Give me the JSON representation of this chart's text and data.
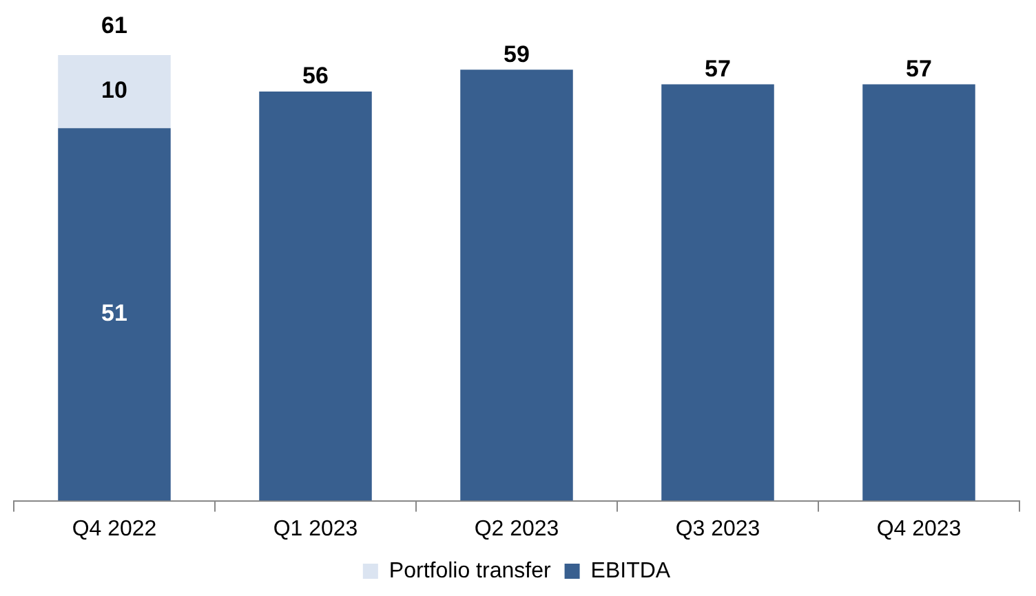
{
  "chart_data": {
    "type": "bar",
    "stacked": true,
    "categories": [
      "Q4 2022",
      "Q1 2023",
      "Q2 2023",
      "Q3 2023",
      "Q4 2023"
    ],
    "series": [
      {
        "name": "EBITDA",
        "color": "#385f8f",
        "values": [
          51,
          56,
          59,
          57,
          57
        ],
        "value_labels": [
          "51",
          null,
          null,
          null,
          null
        ]
      },
      {
        "name": "Portfolio transfer",
        "color": "#dbe4f1",
        "values": [
          10,
          null,
          null,
          null,
          null
        ],
        "value_labels": [
          "10",
          null,
          null,
          null,
          null
        ]
      }
    ],
    "totals": [
      "61",
      "56",
      "59",
      "57",
      "57"
    ],
    "legend": "bottom",
    "grid": false
  }
}
